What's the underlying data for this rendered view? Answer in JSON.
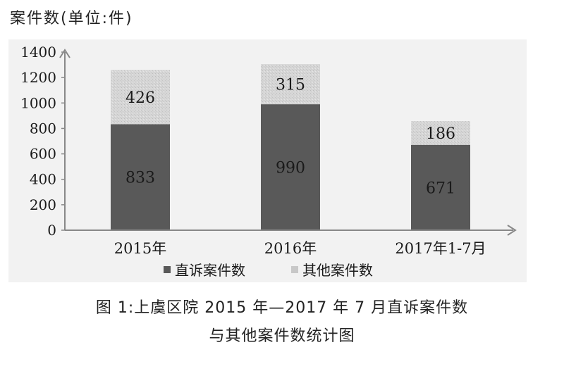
{
  "chart_data": {
    "type": "bar",
    "stacked": true,
    "ylabel": "案件数(单位:件)",
    "ylim": [
      0,
      1400
    ],
    "yticks": [
      "0",
      "200",
      "400",
      "600",
      "800",
      "1000",
      "1200",
      "1400"
    ],
    "categories": [
      "2015年",
      "2016年",
      "2017年1-7月"
    ],
    "series": [
      {
        "name": "直诉案件数",
        "values": [
          833,
          990,
          671
        ],
        "color": "#595959"
      },
      {
        "name": "其他案件数",
        "values": [
          426,
          315,
          186
        ],
        "color": "#d4d4d4"
      }
    ],
    "legend": "bottom",
    "grid": false
  },
  "caption": {
    "line1": "图 1:上虞区院 2015 年—2017 年 7 月直诉案件数",
    "line2": "与其他案件数统计图"
  }
}
